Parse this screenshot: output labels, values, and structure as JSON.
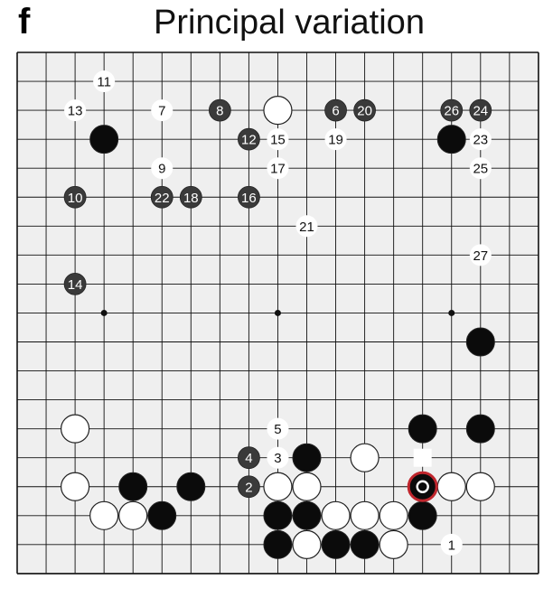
{
  "panel_letter": "f",
  "title": "Principal variation",
  "colors": {
    "board_bg": "#efefef",
    "grid": "#111111",
    "black_stone": "#0b0b0b",
    "numbered_black": "#3a3a3a",
    "white_stone": "#ffffff",
    "highlight_ring": "#c0262d"
  },
  "hoshi": [
    [
      3,
      9
    ],
    [
      9,
      9
    ],
    [
      15,
      9
    ]
  ],
  "stones": [
    {
      "color": "black",
      "col": 3,
      "row": 3
    },
    {
      "color": "white",
      "col": 9,
      "row": 2
    },
    {
      "color": "black",
      "col": 15,
      "row": 3
    },
    {
      "color": "black",
      "col": 16,
      "row": 10
    },
    {
      "color": "white",
      "col": 2,
      "row": 13
    },
    {
      "color": "black",
      "col": 14,
      "row": 13
    },
    {
      "color": "black",
      "col": 16,
      "row": 13
    },
    {
      "color": "black",
      "col": 10,
      "row": 14
    },
    {
      "color": "white",
      "col": 12,
      "row": 14
    },
    {
      "color": "white",
      "col": 2,
      "row": 15
    },
    {
      "color": "black",
      "col": 4,
      "row": 15
    },
    {
      "color": "black",
      "col": 6,
      "row": 15
    },
    {
      "color": "white",
      "col": 9,
      "row": 15
    },
    {
      "color": "white",
      "col": 10,
      "row": 15
    },
    {
      "color": "white",
      "col": 15,
      "row": 15
    },
    {
      "color": "white",
      "col": 16,
      "row": 15
    },
    {
      "color": "white",
      "col": 3,
      "row": 16
    },
    {
      "color": "white",
      "col": 4,
      "row": 16
    },
    {
      "color": "black",
      "col": 5,
      "row": 16
    },
    {
      "color": "black",
      "col": 9,
      "row": 16
    },
    {
      "color": "black",
      "col": 10,
      "row": 16
    },
    {
      "color": "white",
      "col": 11,
      "row": 16
    },
    {
      "color": "white",
      "col": 12,
      "row": 16
    },
    {
      "color": "white",
      "col": 13,
      "row": 16
    },
    {
      "color": "black",
      "col": 14,
      "row": 16
    },
    {
      "color": "black",
      "col": 9,
      "row": 17
    },
    {
      "color": "white",
      "col": 10,
      "row": 17
    },
    {
      "color": "black",
      "col": 11,
      "row": 17
    },
    {
      "color": "black",
      "col": 12,
      "row": 17
    },
    {
      "color": "white",
      "col": 13,
      "row": 17
    }
  ],
  "moves": [
    {
      "n": "1",
      "color": "white",
      "col": 15,
      "row": 17
    },
    {
      "n": "2",
      "color": "black",
      "col": 8,
      "row": 15
    },
    {
      "n": "3",
      "color": "white",
      "col": 9,
      "row": 14
    },
    {
      "n": "4",
      "color": "black",
      "col": 8,
      "row": 14
    },
    {
      "n": "5",
      "color": "white",
      "col": 9,
      "row": 13
    },
    {
      "n": "6",
      "color": "black",
      "col": 11,
      "row": 2
    },
    {
      "n": "7",
      "color": "white",
      "col": 5,
      "row": 2
    },
    {
      "n": "8",
      "color": "black",
      "col": 7,
      "row": 2
    },
    {
      "n": "9",
      "color": "white",
      "col": 5,
      "row": 4
    },
    {
      "n": "10",
      "color": "black",
      "col": 2,
      "row": 5
    },
    {
      "n": "11",
      "color": "white",
      "col": 3,
      "row": 1
    },
    {
      "n": "12",
      "color": "black",
      "col": 8,
      "row": 3
    },
    {
      "n": "13",
      "color": "white",
      "col": 2,
      "row": 2
    },
    {
      "n": "14",
      "color": "black",
      "col": 2,
      "row": 8
    },
    {
      "n": "15",
      "color": "white",
      "col": 9,
      "row": 3
    },
    {
      "n": "16",
      "color": "black",
      "col": 8,
      "row": 5
    },
    {
      "n": "17",
      "color": "white",
      "col": 9,
      "row": 4
    },
    {
      "n": "18",
      "color": "black",
      "col": 6,
      "row": 5
    },
    {
      "n": "19",
      "color": "white",
      "col": 11,
      "row": 3
    },
    {
      "n": "20",
      "color": "black",
      "col": 12,
      "row": 2
    },
    {
      "n": "21",
      "color": "white",
      "col": 10,
      "row": 6
    },
    {
      "n": "22",
      "color": "black",
      "col": 5,
      "row": 5
    },
    {
      "n": "23",
      "color": "white",
      "col": 16,
      "row": 3
    },
    {
      "n": "24",
      "color": "black",
      "col": 16,
      "row": 2
    },
    {
      "n": "25",
      "color": "white",
      "col": 16,
      "row": 4
    },
    {
      "n": "26",
      "color": "black",
      "col": 15,
      "row": 2
    },
    {
      "n": "27",
      "color": "white",
      "col": 16,
      "row": 7
    }
  ],
  "highlighted_stone": {
    "color": "black",
    "col": 14,
    "row": 15
  },
  "square_marker": {
    "color": "white",
    "col": 14,
    "row": 14
  }
}
